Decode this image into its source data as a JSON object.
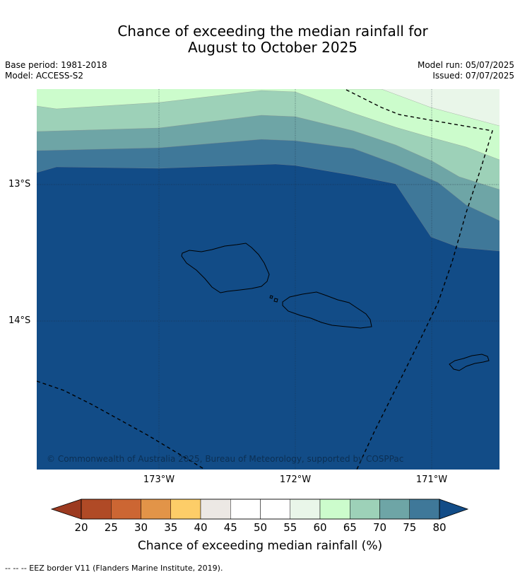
{
  "title_line1": "Chance of exceeding the median rainfall for",
  "title_line2": "August to October 2025",
  "meta": {
    "base_period": "Base period: 1981-2018",
    "model": "Model: ACCESS-S2",
    "model_run": "Model run: 05/07/2025",
    "issued": "Issued: 07/07/2025"
  },
  "axes": {
    "lat_ticks": [
      "13°S",
      "14°S"
    ],
    "lon_ticks": [
      "173°W",
      "172°W",
      "171°W"
    ]
  },
  "copyright": "© Commonwealth of Australia 2025, Bureau of Meteorology, supported by COSPPac",
  "colorbar": {
    "ticks": [
      "20",
      "25",
      "30",
      "35",
      "40",
      "45",
      "50",
      "55",
      "60",
      "65",
      "70",
      "75",
      "80"
    ],
    "label": "Chance of exceeding median rainfall (%)",
    "low_extend_color": "#9c3a20",
    "high_extend_color": "#124c87",
    "colors": [
      "#b04a26",
      "#cc6633",
      "#e29448",
      "#fdcd68",
      "#ece8e4",
      "#ffffff",
      "#ffffff",
      "#e9f6e9",
      "#ccfccc",
      "#9dd1b8",
      "#6ea5a6",
      "#3f7899"
    ]
  },
  "map_colors": {
    "band_55_60": "#e9f6e9",
    "band_60_65": "#ccfccc",
    "band_65_70": "#9dd1b8",
    "band_70_75": "#6ea5a6",
    "band_75_80": "#3f7899",
    "band_80_plus": "#124c87"
  },
  "footer": "--  --  -- EEZ border V11 (Flanders Marine Institute, 2019)."
}
